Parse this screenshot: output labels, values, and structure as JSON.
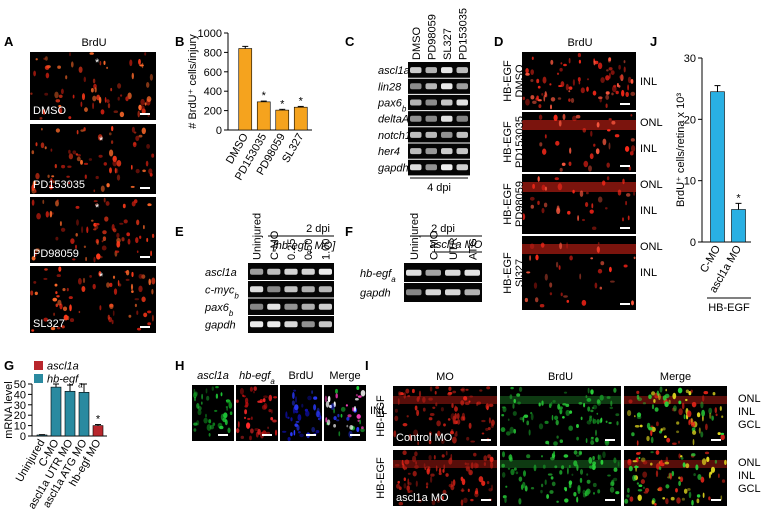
{
  "panels": {
    "A": {
      "label": "A",
      "title": "BrdU",
      "marker": "*",
      "images": [
        "DMSO",
        "PD153035",
        "PD98059",
        "SL327"
      ]
    },
    "C": {
      "label": "C",
      "lanes": [
        "DMSO",
        "PD98059",
        "SL327",
        "PD153035"
      ],
      "genes": [
        "ascl1a",
        "lin28",
        {
          "text": "pax6",
          "sub": "b"
        },
        "deltaA",
        "notch1",
        "her4",
        "gapdh"
      ],
      "footer": "4 dpi"
    },
    "D": {
      "label": "D",
      "title": "BrdU",
      "rows": [
        {
          "treatment": [
            "HB-EGF",
            "DMSO"
          ],
          "layers": [
            "INL"
          ]
        },
        {
          "treatment": [
            "HB-EGF",
            "PD153035"
          ],
          "layers": [
            "ONL",
            "INL"
          ]
        },
        {
          "treatment": [
            "HB-EGF",
            "PD98059"
          ],
          "layers": [
            "ONL",
            "INL"
          ]
        },
        {
          "treatment": [
            "HB-EGF",
            "Sl327"
          ],
          "layers": [
            "ONL",
            "INL"
          ]
        }
      ]
    },
    "E": {
      "label": "E",
      "timepoint": "2 dpi",
      "group": {
        "pre": "[",
        "text": "hb-egf",
        "sub": "a",
        "post": " MO]"
      },
      "lanes": [
        "Uninjured",
        "C-MO",
        "0.25",
        "0.50",
        "1.00"
      ],
      "genes": [
        "ascl1a",
        {
          "text": "c-myc",
          "sub": "b"
        },
        {
          "text": "pax6",
          "sub": "b"
        },
        "gapdh"
      ]
    },
    "F": {
      "label": "F",
      "timepoint": "2 dpi",
      "group": "ascl1a MO",
      "lanes": [
        "Uninjured",
        "C-MO",
        "UTR",
        "ATG"
      ],
      "genes": [
        {
          "text": "hb-egf",
          "sub": "a"
        },
        "gapdh"
      ]
    },
    "H": {
      "label": "H",
      "channels": [
        "ascl1a",
        {
          "text": "hb-egf",
          "sub": "a"
        },
        "BrdU",
        "Merge"
      ],
      "layer": "INL"
    },
    "I": {
      "label": "I",
      "channels": [
        "MO",
        "BrdU",
        "Merge"
      ],
      "rows": [
        {
          "treatment": "HB-EGF",
          "caption": "Control MO"
        },
        {
          "treatment": "HB-EGF",
          "caption": "ascl1a MO"
        }
      ],
      "layers": [
        "ONL",
        "INL",
        "GCL"
      ]
    }
  },
  "chart_data": [
    {
      "type": "bar",
      "panel": "B",
      "ylabel": "# BrdU⁺ cells/injury",
      "categories": [
        "DMSO",
        "PD153035",
        "PD98059",
        "SL327"
      ],
      "values": [
        840,
        290,
        205,
        235
      ],
      "errors": [
        22,
        8,
        8,
        8
      ],
      "color": "#f5a31e",
      "ylim": [
        0,
        1000
      ],
      "yticks": [
        0,
        200,
        400,
        600,
        800,
        1000
      ],
      "annotations": [
        {
          "text": "*",
          "category": "PD153035"
        },
        {
          "text": "*",
          "category": "PD98059"
        },
        {
          "text": "*",
          "category": "SL327"
        }
      ]
    },
    {
      "type": "bar",
      "panel": "J",
      "ylabel": "BrdU⁺ cells/retina x 10³",
      "categories": [
        "C-MO",
        "ascl1a MO"
      ],
      "values": [
        24.5,
        5.3
      ],
      "errors": [
        1.0,
        1.0
      ],
      "color": "#29b0e3",
      "ylim": [
        0,
        30
      ],
      "yticks": [
        0,
        10,
        20,
        30
      ],
      "group_label": "HB-EGF",
      "annotations": [
        {
          "text": "*",
          "category": "ascl1a MO"
        }
      ]
    },
    {
      "type": "bar",
      "panel": "G",
      "ylabel": "mRNA level",
      "categories": [
        "Uninjured",
        "C-MO",
        "ascl1a UTR MO",
        "ascl1a ATG MO",
        "hb-egf MO"
      ],
      "series": [
        {
          "name": "ascl1a",
          "color": "#b8262c",
          "values": [
            null,
            null,
            null,
            null,
            10
          ],
          "errors": [
            null,
            null,
            null,
            null,
            1
          ]
        },
        {
          "name": {
            "text": "hb-egf",
            "sub": "a"
          },
          "color": "#2a8aa0",
          "values": [
            1,
            47,
            43,
            42,
            null
          ],
          "errors": [
            0.3,
            3,
            6,
            8,
            null
          ]
        }
      ],
      "ylim": [
        0,
        50
      ],
      "yticks": [
        0,
        10,
        20,
        30,
        40,
        50
      ],
      "legend": "top-left",
      "annotations": [
        {
          "text": "*",
          "category": "hb-egf MO"
        }
      ]
    }
  ]
}
